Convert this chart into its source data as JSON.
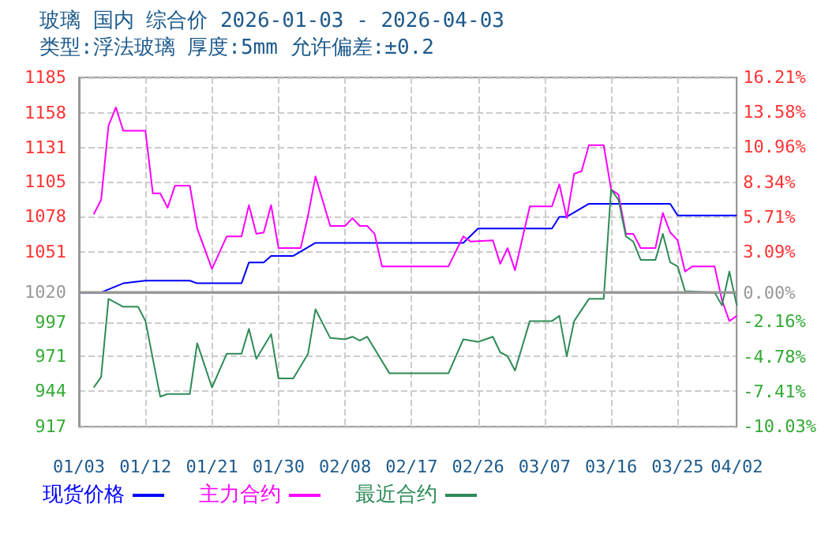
{
  "chart_data": {
    "type": "line",
    "title": "玻璃 国内 综合价 2026-01-03 - 2026-04-03",
    "subtitle": "类型:浮法玻璃 厚度:5mm 允许偏差:±0.2",
    "xlim": [
      "2026-01-03",
      "2026-04-02"
    ],
    "xticks": [
      {
        "value": "2026-01-03",
        "label": "01/03"
      },
      {
        "value": "2026-01-12",
        "label": "01/12"
      },
      {
        "value": "2026-01-21",
        "label": "01/21"
      },
      {
        "value": "2026-01-30",
        "label": "01/30"
      },
      {
        "value": "2026-02-08",
        "label": "02/08"
      },
      {
        "value": "2026-02-17",
        "label": "02/17"
      },
      {
        "value": "2026-02-26",
        "label": "02/26"
      },
      {
        "value": "2026-03-07",
        "label": "03/07"
      },
      {
        "value": "2026-03-16",
        "label": "03/16"
      },
      {
        "value": "2026-03-25",
        "label": "03/25"
      },
      {
        "value": "2026-04-02",
        "label": "04/02"
      }
    ],
    "ylim": [
      917,
      1185
    ],
    "yticks": [
      917,
      944,
      971,
      997,
      1020,
      1051,
      1078,
      1105,
      1131,
      1158,
      1185
    ],
    "y2lim": [
      -10.03,
      16.21
    ],
    "y2ticks": [
      {
        "value": -10.03,
        "label": "-10.03%"
      },
      {
        "value": -7.41,
        "label": "-7.41%"
      },
      {
        "value": -4.78,
        "label": "-4.78%"
      },
      {
        "value": -2.16,
        "label": "-2.16%"
      },
      {
        "value": 0,
        "label": "0.00%"
      },
      {
        "value": 3.09,
        "label": "3.09%"
      },
      {
        "value": 5.71,
        "label": "5.71%"
      },
      {
        "value": 8.34,
        "label": "8.34%"
      },
      {
        "value": 10.96,
        "label": "10.96%"
      },
      {
        "value": 13.58,
        "label": "13.58%"
      },
      {
        "value": 16.21,
        "label": "16.21%"
      }
    ],
    "ref_lines": [
      {
        "axis": "y",
        "value": 1020,
        "color": "#999999",
        "line_style": "solid"
      }
    ],
    "grid": true,
    "legend": "bottom left",
    "marker": "none",
    "line_style": "solid",
    "series": [
      {
        "name": "现货价格",
        "color": "#0000ff",
        "x": [
          "2026-01-03",
          "2026-01-06",
          "2026-01-09",
          "2026-01-12",
          "2026-01-18",
          "2026-01-19",
          "2026-01-25",
          "2026-01-26",
          "2026-01-28",
          "2026-01-29",
          "2026-02-01",
          "2026-02-04",
          "2026-02-24",
          "2026-02-26",
          "2026-03-08",
          "2026-03-09",
          "2026-03-10",
          "2026-03-13",
          "2026-03-24",
          "2026-03-25",
          "2026-04-02"
        ],
        "values": [
          1020,
          1020,
          1027,
          1029,
          1029,
          1027,
          1027,
          1043,
          1043,
          1048,
          1048,
          1058,
          1058,
          1069,
          1069,
          1078,
          1078,
          1088,
          1088,
          1079,
          1079
        ]
      },
      {
        "name": "主力合约",
        "color": "#ff00ff",
        "x": [
          "2026-01-05",
          "2026-01-06",
          "2026-01-07",
          "2026-01-08",
          "2026-01-09",
          "2026-01-12",
          "2026-01-13",
          "2026-01-14",
          "2026-01-15",
          "2026-01-16",
          "2026-01-18",
          "2026-01-19",
          "2026-01-21",
          "2026-01-23",
          "2026-01-25",
          "2026-01-26",
          "2026-01-27",
          "2026-01-28",
          "2026-01-29",
          "2026-01-30",
          "2026-02-02",
          "2026-02-03",
          "2026-02-04",
          "2026-02-06",
          "2026-02-08",
          "2026-02-09",
          "2026-02-10",
          "2026-02-11",
          "2026-02-12",
          "2026-02-13",
          "2026-02-17",
          "2026-02-22",
          "2026-02-24",
          "2026-02-25",
          "2026-02-28",
          "2026-03-01",
          "2026-03-02",
          "2026-03-03",
          "2026-03-05",
          "2026-03-08",
          "2026-03-09",
          "2026-03-10",
          "2026-03-11",
          "2026-03-12",
          "2026-03-13",
          "2026-03-15",
          "2026-03-16",
          "2026-03-17",
          "2026-03-18",
          "2026-03-19",
          "2026-03-20",
          "2026-03-22",
          "2026-03-23",
          "2026-03-24",
          "2026-03-25",
          "2026-03-26",
          "2026-03-27",
          "2026-03-30",
          "2026-03-31",
          "2026-04-01",
          "2026-04-02"
        ],
        "values": [
          1080,
          1091,
          1148,
          1162,
          1144,
          1144,
          1096,
          1096,
          1085,
          1102,
          1102,
          1069,
          1038,
          1063,
          1063,
          1087,
          1065,
          1066,
          1087,
          1054,
          1054,
          1079,
          1109,
          1071,
          1071,
          1077,
          1071,
          1071,
          1065,
          1040,
          1040,
          1040,
          1063,
          1059,
          1060,
          1042,
          1054,
          1037,
          1086,
          1086,
          1103,
          1077,
          1111,
          1113,
          1133,
          1133,
          1099,
          1095,
          1065,
          1065,
          1054,
          1054,
          1081,
          1066,
          1060,
          1036,
          1040,
          1040,
          1014,
          998,
          1002
        ]
      },
      {
        "name": "最近合约",
        "color": "#2e8b57",
        "x": [
          "2026-01-05",
          "2026-01-06",
          "2026-01-07",
          "2026-01-09",
          "2026-01-11",
          "2026-01-12",
          "2026-01-14",
          "2026-01-15",
          "2026-01-18",
          "2026-01-19",
          "2026-01-21",
          "2026-01-23",
          "2026-01-25",
          "2026-01-26",
          "2026-01-27",
          "2026-01-29",
          "2026-01-30",
          "2026-02-01",
          "2026-02-03",
          "2026-02-04",
          "2026-02-06",
          "2026-02-08",
          "2026-02-09",
          "2026-02-10",
          "2026-02-11",
          "2026-02-14",
          "2026-02-17",
          "2026-02-22",
          "2026-02-24",
          "2026-02-26",
          "2026-02-28",
          "2026-03-01",
          "2026-03-02",
          "2026-03-03",
          "2026-03-05",
          "2026-03-08",
          "2026-03-09",
          "2026-03-10",
          "2026-03-11",
          "2026-03-13",
          "2026-03-15",
          "2026-03-16",
          "2026-03-17",
          "2026-03-18",
          "2026-03-19",
          "2026-03-20",
          "2026-03-22",
          "2026-03-23",
          "2026-03-24",
          "2026-03-25",
          "2026-03-26",
          "2026-03-30",
          "2026-03-31",
          "2026-04-01",
          "2026-04-02"
        ],
        "values": [
          947,
          955,
          1015,
          1009,
          1009,
          998,
          940,
          942,
          942,
          981,
          947,
          973,
          973,
          992,
          969,
          988,
          954,
          954,
          973,
          1007,
          985,
          984,
          986,
          983,
          986,
          958,
          958,
          958,
          984,
          982,
          986,
          974,
          971,
          960,
          998,
          998,
          1002,
          971,
          998,
          1015,
          1015,
          1099,
          1091,
          1063,
          1059,
          1045,
          1045,
          1065,
          1043,
          1040,
          1021,
          1020,
          1010,
          1036,
          1010
        ]
      }
    ]
  }
}
